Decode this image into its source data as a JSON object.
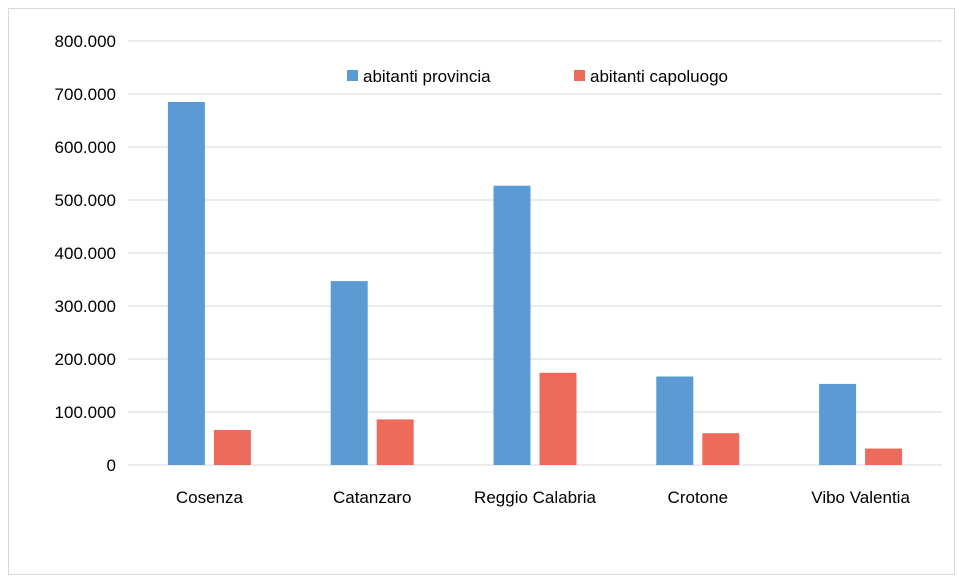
{
  "chart_data": {
    "type": "bar",
    "categories": [
      "Cosenza",
      "Catanzaro",
      "Reggio Calabria",
      "Crotone",
      "Vibo Valentia"
    ],
    "series": [
      {
        "name": "abitanti provincia",
        "color": "#5b9bd5",
        "values": [
          685000,
          347000,
          527000,
          167000,
          153000
        ]
      },
      {
        "name": "abitanti capoluogo",
        "color": "#ed6b5c",
        "values": [
          66000,
          86000,
          174000,
          60000,
          31000
        ]
      }
    ],
    "ylim": [
      0,
      800000
    ],
    "yticks": [
      0,
      100000,
      200000,
      300000,
      400000,
      500000,
      600000,
      700000,
      800000
    ],
    "ytick_labels": [
      "0",
      "100.000",
      "200.000",
      "300.000",
      "400.000",
      "500.000",
      "600.000",
      "700.000",
      "800.000"
    ],
    "grid": true,
    "legend_position": "top-center",
    "title": "",
    "xlabel": "",
    "ylabel": ""
  }
}
